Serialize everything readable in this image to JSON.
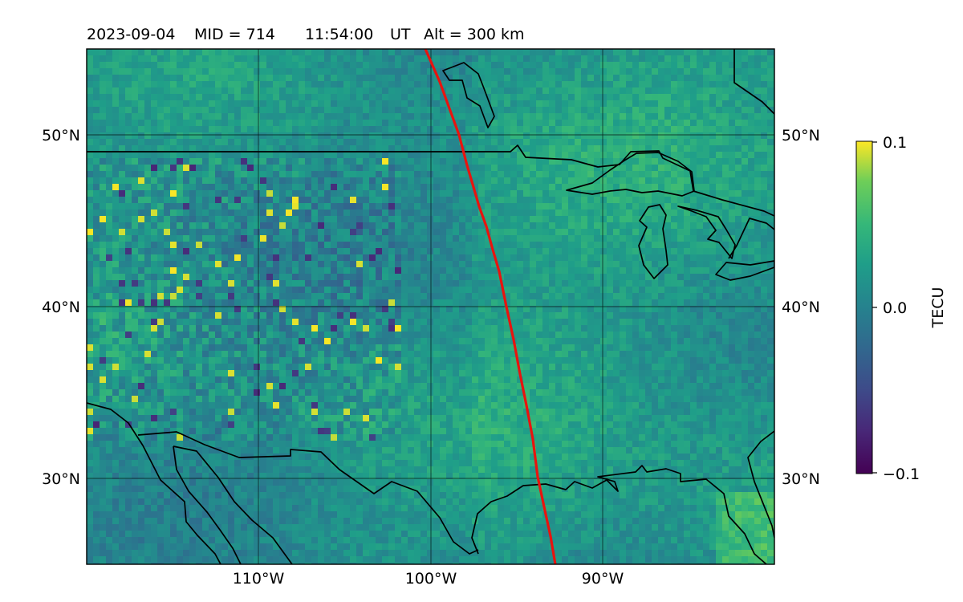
{
  "title": {
    "date": "2023-09-04",
    "mid": "MID = 714",
    "time": "11:54:00",
    "ut": "UT",
    "alt": "Alt = 300 km"
  },
  "map": {
    "lon_range": [
      -120,
      -80
    ],
    "lat_range": [
      25,
      55
    ],
    "lat_ticks": [
      {
        "value": 30,
        "label": "30°N"
      },
      {
        "value": 40,
        "label": "40°N"
      },
      {
        "value": 50,
        "label": "50°N"
      }
    ],
    "lon_ticks": [
      {
        "value": -110,
        "label": "110°W"
      },
      {
        "value": -100,
        "label": "100°W"
      },
      {
        "value": -90,
        "label": "90°W"
      }
    ],
    "gridlines": true,
    "field": "TEC perturbation",
    "track_color": "#e8140f",
    "coast_color": "#000000"
  },
  "colorbar": {
    "label": "TECU",
    "min": -0.1,
    "max": 0.1,
    "colormap": "viridis",
    "ticks": [
      {
        "value": 0.1,
        "label": "0.1"
      },
      {
        "value": 0.0,
        "label": "0.0"
      },
      {
        "value": -0.1,
        "label": "−0.1"
      }
    ]
  }
}
